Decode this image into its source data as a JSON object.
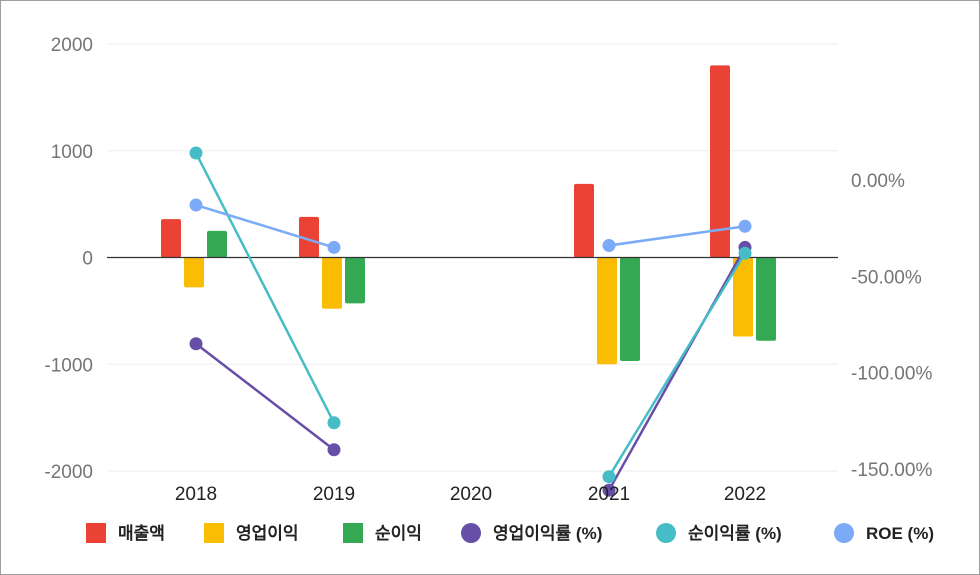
{
  "chart_data": {
    "type": "bar",
    "categories": [
      "2018",
      "2019",
      "2020",
      "2021",
      "2022"
    ],
    "left_axis": {
      "min": -2000,
      "max": 2000,
      "ticks": [
        "2000",
        "1000",
        "0",
        "-1000",
        "-2000"
      ]
    },
    "right_axis": {
      "ticks": [
        "0.00%",
        "-50.00%",
        "-100.00%",
        "-150.00%"
      ]
    },
    "bar_series": [
      {
        "name": "매출액",
        "color": "#ea4335",
        "values": [
          360,
          380,
          null,
          690,
          1800
        ]
      },
      {
        "name": "영업이익",
        "color": "#fbbc04",
        "values": [
          -280,
          -480,
          null,
          -1000,
          -740
        ]
      },
      {
        "name": "순이익",
        "color": "#34a853",
        "values": [
          250,
          -430,
          null,
          -970,
          -780
        ]
      }
    ],
    "line_series": [
      {
        "name": "영업이익률 (%)",
        "color": "#674ea7",
        "values": [
          -85,
          -140,
          null,
          -161,
          -35
        ]
      },
      {
        "name": "순이익률 (%)",
        "color": "#46bdc6",
        "values": [
          14,
          -126,
          null,
          -154,
          -38
        ]
      },
      {
        "name": "ROE (%)",
        "color": "#7baaf7",
        "values": [
          -13,
          -35,
          null,
          -34,
          -24
        ]
      }
    ],
    "grid": true,
    "legend_position": "bottom"
  }
}
